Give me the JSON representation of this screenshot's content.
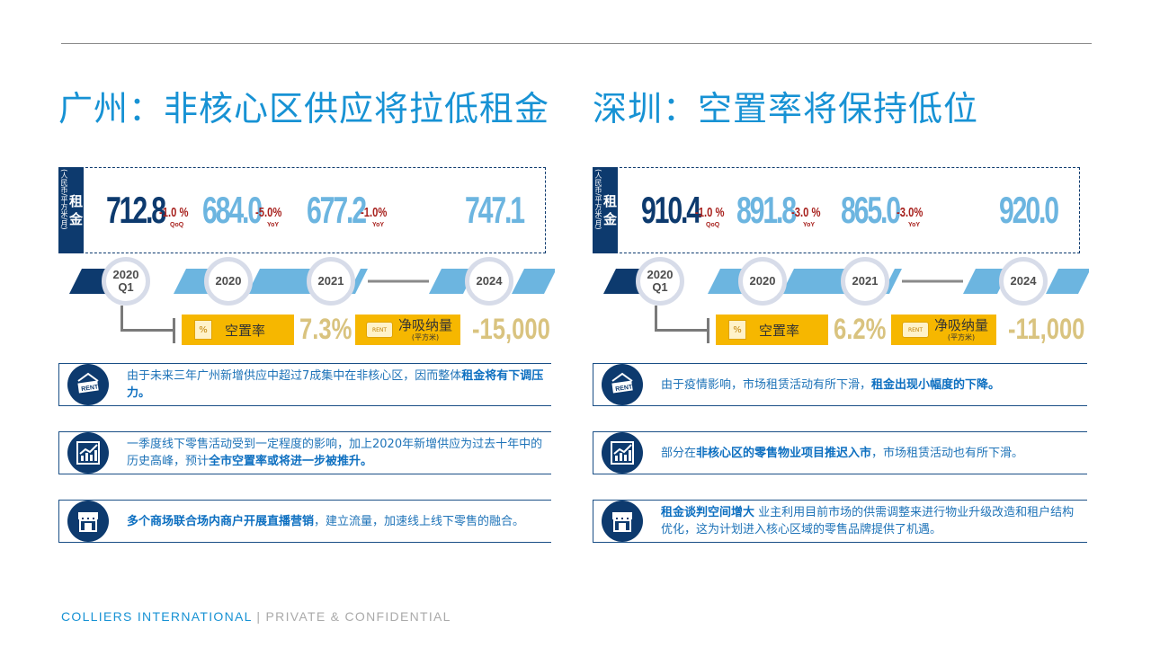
{
  "left": {
    "title": "广州：非核心区供应将拉低租金",
    "rent_unit": "(人民币/平方米/月)",
    "rent_label": "租金",
    "values": [
      "712.8",
      "684.0",
      "677.2",
      "747.1"
    ],
    "changes": [
      {
        "pct": "-1.0 %",
        "sub": "QoQ"
      },
      {
        "pct": "-5.0%",
        "sub": "YoY"
      },
      {
        "pct": "-1.0%",
        "sub": "YoY"
      }
    ],
    "years": [
      "2020\nQ1",
      "2020",
      "2021",
      "2024"
    ],
    "vacancy_label": "空置率",
    "vacancy_value": "7.3%",
    "absorption_label": "净吸纳量",
    "absorption_unit": "(平方米)",
    "absorption_value": "-15,000",
    "cards": [
      {
        "pre": "由于未来三年广州新增供应中超过7成集中在非核心区，因而整体",
        "bold": "租金将有下调压力。",
        "post": "",
        "icon": "rent-sign-icon"
      },
      {
        "pre": "一季度线下零售活动受到一定程度的影响，加上2020年新增供应为过去十年中的历史高峰，预计",
        "bold": "全市空置率或将进一步被推升。",
        "post": "",
        "icon": "chart-growth-icon"
      },
      {
        "pre": "",
        "bold": "多个商场联合场内商户开展直播营销",
        "post": "，建立流量，加速线上线下零售的融合。",
        "icon": "storefront-icon"
      }
    ]
  },
  "right": {
    "title": "深圳：空置率将保持低位",
    "rent_unit": "(人民币/平方米/月)",
    "rent_label": "租金",
    "values": [
      "910.4",
      "891.8",
      "865.0",
      "920.0"
    ],
    "changes": [
      {
        "pct": "-1.0 %",
        "sub": "QoQ"
      },
      {
        "pct": "-3.0 %",
        "sub": "YoY"
      },
      {
        "pct": "-3.0%",
        "sub": "YoY"
      }
    ],
    "years": [
      "2020\nQ1",
      "2020",
      "2021",
      "2024"
    ],
    "vacancy_label": "空置率",
    "vacancy_value": "6.2%",
    "absorption_label": "净吸纳量",
    "absorption_unit": "(平方米)",
    "absorption_value": "-11,000",
    "cards": [
      {
        "pre": "由于疫情影响，市场租赁活动有所下滑，",
        "bold": "租金出现小幅度的下降。",
        "post": "",
        "icon": "rent-sign-icon"
      },
      {
        "pre": "部分在",
        "bold": "非核心区的零售物业项目推迟入市",
        "post": "，市场租赁活动也有所下滑。",
        "icon": "chart-growth-icon"
      },
      {
        "pre": "",
        "bold": "租金谈判空间增大",
        "post": " 业主利用目前市场的供需调整来进行物业升级改造和租户结构优化，这为计划进入核心区域的零售品牌提供了机遇。",
        "icon": "storefront-icon"
      }
    ]
  },
  "footer": {
    "company": "COLLIERS INTERNATIONAL",
    "separator": "|",
    "note": "PRIVATE & CONFIDENTIAL"
  },
  "colors": {
    "navy": "#0d3a6e",
    "accent_blue": "#1792d4",
    "light_blue": "#6cb5e0",
    "change_red": "#a8231f",
    "yellow": "#f6b700",
    "tan": "#d9c37f"
  }
}
